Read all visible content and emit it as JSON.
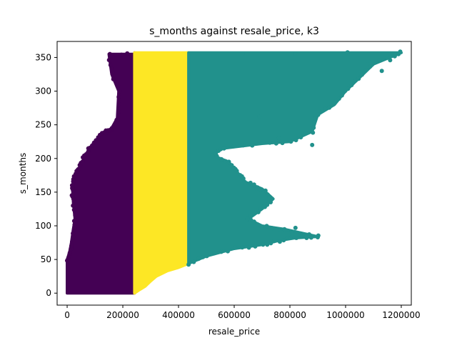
{
  "chart_data": {
    "type": "scatter",
    "title": "s_months against resale_price, k3",
    "xlabel": "resale_price",
    "ylabel": "s_months",
    "xlim": [
      -36000,
      1236000
    ],
    "ylim": [
      -17.8,
      373.8
    ],
    "xticks": [
      0,
      200000,
      400000,
      600000,
      800000,
      1000000,
      1200000
    ],
    "xtick_labels": [
      "0",
      "200000",
      "400000",
      "600000",
      "800000",
      "1000000",
      "1200000"
    ],
    "yticks": [
      0,
      50,
      100,
      150,
      200,
      250,
      300,
      350
    ],
    "ytick_labels": [
      "0",
      "50",
      "100",
      "150",
      "200",
      "250",
      "300",
      "350"
    ],
    "grid": false,
    "legend": false,
    "clusters": [
      {
        "color": "#440154",
        "x_range": [
          0,
          242000
        ],
        "region_bounds": {
          "y_top": [
            {
              "x": 0,
              "y": 50
            },
            {
              "x": 8000,
              "y": 60
            },
            {
              "x": 15000,
              "y": 75
            },
            {
              "x": 22000,
              "y": 95
            },
            {
              "x": 28000,
              "y": 110
            },
            {
              "x": 22000,
              "y": 135
            },
            {
              "x": 20000,
              "y": 150
            },
            {
              "x": 22000,
              "y": 165
            },
            {
              "x": 30000,
              "y": 175
            },
            {
              "x": 45000,
              "y": 185
            },
            {
              "x": 60000,
              "y": 200
            },
            {
              "x": 80000,
              "y": 215
            },
            {
              "x": 100000,
              "y": 225
            },
            {
              "x": 120000,
              "y": 235
            },
            {
              "x": 140000,
              "y": 240
            },
            {
              "x": 160000,
              "y": 245
            },
            {
              "x": 180000,
              "y": 260
            },
            {
              "x": 185000,
              "y": 300
            },
            {
              "x": 160000,
              "y": 325
            },
            {
              "x": 150000,
              "y": 355
            },
            {
              "x": 242000,
              "y": 355
            }
          ]
        }
      },
      {
        "color": "#fde725",
        "x_range": [
          242000,
          436000
        ],
        "region_bounds": {
          "y_bottom": [
            {
              "x": 242000,
              "y": 0
            },
            {
              "x": 260000,
              "y": 5
            },
            {
              "x": 280000,
              "y": 10
            },
            {
              "x": 300000,
              "y": 18
            },
            {
              "x": 320000,
              "y": 25
            },
            {
              "x": 360000,
              "y": 33
            },
            {
              "x": 400000,
              "y": 38
            },
            {
              "x": 436000,
              "y": 44
            }
          ]
        }
      },
      {
        "color": "#21918c",
        "x_range": [
          436000,
          1200000
        ],
        "region_bounds": {
          "outline": [
            {
              "x": 436000,
              "y": 44
            },
            {
              "x": 500000,
              "y": 55
            },
            {
              "x": 600000,
              "y": 66
            },
            {
              "x": 700000,
              "y": 72
            },
            {
              "x": 760000,
              "y": 78
            },
            {
              "x": 820000,
              "y": 82
            },
            {
              "x": 900000,
              "y": 84
            },
            {
              "x": 780000,
              "y": 95
            },
            {
              "x": 700000,
              "y": 100
            },
            {
              "x": 650000,
              "y": 110
            },
            {
              "x": 700000,
              "y": 125
            },
            {
              "x": 740000,
              "y": 140
            },
            {
              "x": 700000,
              "y": 155
            },
            {
              "x": 640000,
              "y": 165
            },
            {
              "x": 610000,
              "y": 180
            },
            {
              "x": 580000,
              "y": 195
            },
            {
              "x": 520000,
              "y": 205
            },
            {
              "x": 560000,
              "y": 215
            },
            {
              "x": 700000,
              "y": 222
            },
            {
              "x": 800000,
              "y": 225
            },
            {
              "x": 880000,
              "y": 240
            },
            {
              "x": 900000,
              "y": 265
            },
            {
              "x": 960000,
              "y": 280
            },
            {
              "x": 1000000,
              "y": 300
            },
            {
              "x": 1050000,
              "y": 320
            },
            {
              "x": 1100000,
              "y": 340
            },
            {
              "x": 1200000,
              "y": 357
            },
            {
              "x": 436000,
              "y": 357
            }
          ],
          "outliers": [
            {
              "x": 880000,
              "y": 220
            },
            {
              "x": 860000,
              "y": 82
            },
            {
              "x": 900000,
              "y": 83
            },
            {
              "x": 820000,
              "y": 97
            },
            {
              "x": 690000,
              "y": 262
            },
            {
              "x": 760000,
              "y": 230
            },
            {
              "x": 680000,
              "y": 155
            },
            {
              "x": 710000,
              "y": 128
            },
            {
              "x": 1080000,
              "y": 345
            },
            {
              "x": 1130000,
              "y": 330
            },
            {
              "x": 1160000,
              "y": 346
            },
            {
              "x": 1190000,
              "y": 355
            }
          ]
        }
      }
    ],
    "y_max": 357
  }
}
